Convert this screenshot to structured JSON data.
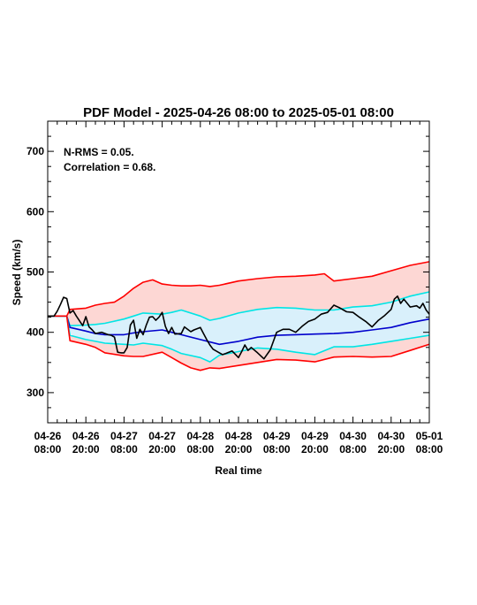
{
  "chart_data": {
    "type": "line",
    "title": "PDF Model - 2025-04-26 08:00 to 2025-05-01 08:00",
    "xlabel": "Real time",
    "ylabel": "Speed (km/s)",
    "ylim": [
      250,
      750
    ],
    "xlim": [
      "2025-04-26 08:00",
      "2025-05-01 08:00"
    ],
    "yticks": [
      300,
      400,
      500,
      600,
      700
    ],
    "xticks": [
      {
        "x": "2025-04-26 08:00",
        "line1": "04-26",
        "line2": "08:00"
      },
      {
        "x": "2025-04-26 20:00",
        "line1": "04-26",
        "line2": "20:00"
      },
      {
        "x": "2025-04-27 08:00",
        "line1": "04-27",
        "line2": "08:00"
      },
      {
        "x": "2025-04-27 20:00",
        "line1": "04-27",
        "line2": "20:00"
      },
      {
        "x": "2025-04-28 08:00",
        "line1": "04-28",
        "line2": "08:00"
      },
      {
        "x": "2025-04-28 20:00",
        "line1": "04-28",
        "line2": "20:00"
      },
      {
        "x": "2025-04-29 08:00",
        "line1": "04-29",
        "line2": "08:00"
      },
      {
        "x": "2025-04-29 20:00",
        "line1": "04-29",
        "line2": "20:00"
      },
      {
        "x": "2025-04-30 08:00",
        "line1": "04-30",
        "line2": "08:00"
      },
      {
        "x": "2025-04-30 20:00",
        "line1": "04-30",
        "line2": "20:00"
      },
      {
        "x": "2025-05-01 08:00",
        "line1": "05-01",
        "line2": "08:00"
      }
    ],
    "annotations": [
      "N-RMS = 0.05.",
      "Correlation = 0.68."
    ],
    "colors": {
      "outer_band": "#ff0000",
      "outer_fill": "#fdd7d4",
      "inner_band": "#00e5e5",
      "inner_fill": "#d9f0fb",
      "median": "#0000cc",
      "observed": "#000000"
    },
    "series": [
      {
        "x": [
          "2025-04-26 08:00",
          "2025-04-26 14:00",
          "2025-04-26 15:00",
          "2025-04-26 20:00",
          "2025-04-26 23:00",
          "2025-04-27 02:00",
          "2025-04-27 05:00",
          "2025-04-27 08:00",
          "2025-04-27 11:00",
          "2025-04-27 14:00",
          "2025-04-27 17:00",
          "2025-04-27 20:00",
          "2025-04-27 23:00",
          "2025-04-28 02:00",
          "2025-04-28 05:00",
          "2025-04-28 08:00",
          "2025-04-28 11:00",
          "2025-04-28 14:00",
          "2025-04-28 20:00",
          "2025-04-29 02:00",
          "2025-04-29 08:00",
          "2025-04-29 14:00",
          "2025-04-29 20:00",
          "2025-04-29 23:00",
          "2025-04-30 02:00",
          "2025-04-30 08:00",
          "2025-04-30 14:00",
          "2025-04-30 20:00",
          "2025-05-01 02:00",
          "2025-05-01 08:00"
        ],
        "y": [
          427,
          427,
          438,
          440,
          445,
          448,
          450,
          460,
          473,
          483,
          487,
          480,
          478,
          477,
          477,
          478,
          476,
          478,
          485,
          489,
          492,
          493,
          495,
          497,
          485,
          489,
          493,
          502,
          511,
          517
        ]
      },
      {
        "x": [
          "2025-04-26 08:00",
          "2025-04-26 14:00",
          "2025-04-26 15:00",
          "2025-04-26 20:00",
          "2025-04-26 23:00",
          "2025-04-27 02:00",
          "2025-04-27 08:00",
          "2025-04-27 11:00",
          "2025-04-27 14:00",
          "2025-04-27 20:00",
          "2025-04-27 23:00",
          "2025-04-28 02:00",
          "2025-04-28 08:00",
          "2025-04-28 11:00",
          "2025-04-28 14:00",
          "2025-04-28 20:00",
          "2025-04-29 02:00",
          "2025-04-29 08:00",
          "2025-04-29 14:00",
          "2025-04-29 20:00",
          "2025-04-30 02:00",
          "2025-04-30 08:00",
          "2025-04-30 14:00",
          "2025-04-30 20:00",
          "2025-05-01 02:00",
          "2025-05-01 08:00"
        ],
        "y": [
          427,
          427,
          411,
          412,
          413,
          415,
          422,
          427,
          432,
          430,
          433,
          437,
          427,
          420,
          423,
          432,
          438,
          441,
          440,
          437,
          437,
          442,
          444,
          450,
          460,
          467
        ]
      },
      {
        "x": [
          "2025-04-26 08:00",
          "2025-04-26 14:00",
          "2025-04-26 15:00",
          "2025-04-26 20:00",
          "2025-04-26 23:00",
          "2025-04-27 02:00",
          "2025-04-27 08:00",
          "2025-04-27 11:00",
          "2025-04-27 14:00",
          "2025-04-27 20:00",
          "2025-04-27 23:00",
          "2025-04-28 02:00",
          "2025-04-28 08:00",
          "2025-04-28 14:00",
          "2025-04-28 20:00",
          "2025-04-29 02:00",
          "2025-04-29 08:00",
          "2025-04-29 14:00",
          "2025-04-29 20:00",
          "2025-04-30 02:00",
          "2025-04-30 08:00",
          "2025-04-30 14:00",
          "2025-04-30 20:00",
          "2025-05-01 02:00",
          "2025-05-01 08:00"
        ],
        "y": [
          427,
          427,
          408,
          402,
          398,
          396,
          396,
          399,
          401,
          404,
          400,
          396,
          388,
          380,
          385,
          392,
          395,
          396,
          397,
          398,
          400,
          404,
          408,
          416,
          422
        ]
      },
      {
        "x": [
          "2025-04-26 08:00",
          "2025-04-26 14:00",
          "2025-04-26 15:00",
          "2025-04-26 20:00",
          "2025-04-26 23:00",
          "2025-04-27 02:00",
          "2025-04-27 08:00",
          "2025-04-27 11:00",
          "2025-04-27 14:00",
          "2025-04-27 20:00",
          "2025-04-27 23:00",
          "2025-04-28 02:00",
          "2025-04-28 08:00",
          "2025-04-28 11:00",
          "2025-04-28 14:00",
          "2025-04-28 20:00",
          "2025-04-29 02:00",
          "2025-04-29 08:00",
          "2025-04-29 14:00",
          "2025-04-29 20:00",
          "2025-04-30 02:00",
          "2025-04-30 08:00",
          "2025-04-30 14:00",
          "2025-04-30 20:00",
          "2025-05-01 02:00",
          "2025-05-01 08:00"
        ],
        "y": [
          427,
          427,
          395,
          388,
          385,
          382,
          380,
          379,
          382,
          378,
          372,
          365,
          358,
          351,
          362,
          368,
          374,
          372,
          367,
          363,
          376,
          376,
          380,
          385,
          390,
          395
        ]
      },
      {
        "x": [
          "2025-04-26 08:00",
          "2025-04-26 14:00",
          "2025-04-26 15:00",
          "2025-04-26 20:00",
          "2025-04-26 23:00",
          "2025-04-27 02:00",
          "2025-04-27 08:00",
          "2025-04-27 11:00",
          "2025-04-27 14:00",
          "2025-04-27 20:00",
          "2025-04-27 23:00",
          "2025-04-28 02:00",
          "2025-04-28 05:00",
          "2025-04-28 08:00",
          "2025-04-28 11:00",
          "2025-04-28 14:00",
          "2025-04-28 20:00",
          "2025-04-29 02:00",
          "2025-04-29 08:00",
          "2025-04-29 14:00",
          "2025-04-29 20:00",
          "2025-04-30 02:00",
          "2025-04-30 08:00",
          "2025-04-30 14:00",
          "2025-04-30 20:00",
          "2025-05-01 02:00",
          "2025-05-01 08:00"
        ],
        "y": [
          427,
          427,
          386,
          380,
          375,
          366,
          361,
          360,
          360,
          367,
          358,
          349,
          341,
          337,
          341,
          340,
          345,
          350,
          355,
          354,
          351,
          359,
          360,
          359,
          360,
          370,
          380
        ]
      },
      {
        "x": [
          "2025-04-26 08:00",
          "2025-04-26 10:00",
          "2025-04-26 11:00",
          "2025-04-26 12:00",
          "2025-04-26 13:00",
          "2025-04-26 14:00",
          "2025-04-26 15:00",
          "2025-04-26 16:00",
          "2025-04-26 17:00",
          "2025-04-26 18:00",
          "2025-04-26 19:00",
          "2025-04-26 20:00",
          "2025-04-26 21:00",
          "2025-04-26 22:00",
          "2025-04-26 23:00",
          "2025-04-27 01:00",
          "2025-04-27 03:00",
          "2025-04-27 04:00",
          "2025-04-27 05:00",
          "2025-04-27 06:00",
          "2025-04-27 07:00",
          "2025-04-27 08:00",
          "2025-04-27 09:00",
          "2025-04-27 10:00",
          "2025-04-27 11:00",
          "2025-04-27 12:00",
          "2025-04-27 13:00",
          "2025-04-27 14:00",
          "2025-04-27 15:00",
          "2025-04-27 16:00",
          "2025-04-27 17:00",
          "2025-04-27 18:00",
          "2025-04-27 19:00",
          "2025-04-27 20:00",
          "2025-04-27 21:00",
          "2025-04-27 22:00",
          "2025-04-27 23:00",
          "2025-04-28 00:00",
          "2025-04-28 02:00",
          "2025-04-28 03:00",
          "2025-04-28 05:00",
          "2025-04-28 06:00",
          "2025-04-28 08:00",
          "2025-04-28 09:00",
          "2025-04-28 10:00",
          "2025-04-28 11:00",
          "2025-04-28 12:00",
          "2025-04-28 14:00",
          "2025-04-28 15:00",
          "2025-04-28 16:00",
          "2025-04-28 18:00",
          "2025-04-28 20:00",
          "2025-04-28 21:00",
          "2025-04-28 22:00",
          "2025-04-28 23:00",
          "2025-04-29 00:00",
          "2025-04-29 02:00",
          "2025-04-29 04:00",
          "2025-04-29 06:00",
          "2025-04-29 08:00",
          "2025-04-29 10:00",
          "2025-04-29 12:00",
          "2025-04-29 14:00",
          "2025-04-29 16:00",
          "2025-04-29 18:00",
          "2025-04-29 20:00",
          "2025-04-29 22:00",
          "2025-04-30 00:00",
          "2025-04-30 02:00",
          "2025-04-30 04:00",
          "2025-04-30 06:00",
          "2025-04-30 08:00",
          "2025-04-30 10:00",
          "2025-04-30 12:00",
          "2025-04-30 14:00",
          "2025-04-30 16:00",
          "2025-04-30 18:00",
          "2025-04-30 20:00",
          "2025-04-30 21:00",
          "2025-04-30 22:00",
          "2025-04-30 23:00",
          "2025-05-01 00:00",
          "2025-05-01 02:00",
          "2025-05-01 04:00",
          "2025-05-01 05:00",
          "2025-05-01 06:00",
          "2025-05-01 07:00",
          "2025-05-01 08:00"
        ],
        "y": [
          427,
          427,
          435,
          446,
          458,
          456,
          432,
          436,
          427,
          419,
          411,
          426,
          409,
          404,
          398,
          400,
          396,
          395,
          392,
          367,
          366,
          366,
          375,
          412,
          420,
          390,
          405,
          396,
          412,
          425,
          426,
          420,
          425,
          433,
          410,
          398,
          408,
          397,
          398,
          409,
          401,
          404,
          408,
          398,
          388,
          379,
          372,
          366,
          363,
          365,
          369,
          358,
          368,
          379,
          370,
          375,
          366,
          356,
          371,
          400,
          405,
          405,
          400,
          410,
          418,
          422,
          430,
          433,
          445,
          440,
          434,
          433,
          425,
          418,
          409,
          420,
          428,
          438,
          455,
          460,
          448,
          455,
          442,
          444,
          440,
          448,
          437,
          430
        ]
      }
    ]
  }
}
